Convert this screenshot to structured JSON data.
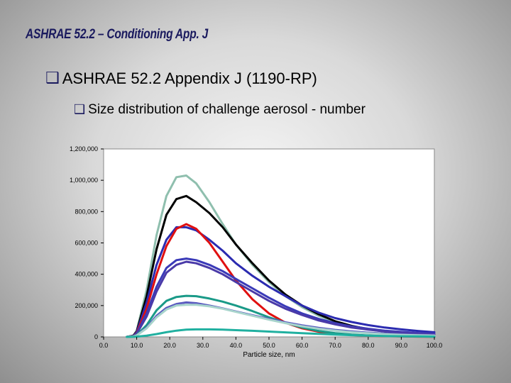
{
  "slide": {
    "title": "ASHRAE 52.2 – Conditioning App. J",
    "bullet1": "ASHRAE 52.2 Appendix J (1190-RP)",
    "bullet2": "Size distribution of challenge aerosol - number",
    "bullet_icon": "q-checkbox-bullet-icon"
  },
  "chart_data": {
    "type": "line",
    "title": "",
    "xlabel": "Particle size, nm",
    "ylabel": "",
    "xlim": [
      0,
      100
    ],
    "ylim": [
      0,
      1200000
    ],
    "x_tick_labels": [
      "0.0",
      "10.0",
      "20.0",
      "30.0",
      "40.0",
      "50.0",
      "60.0",
      "70.0",
      "80.0",
      "90.0",
      "100.0"
    ],
    "y_tick_labels": [
      "0",
      "200,000",
      "400,000",
      "600,000",
      "800,000",
      "1,000,000",
      "1,200,000"
    ],
    "grid": false,
    "legend": "none",
    "x": [
      7,
      9,
      10,
      13,
      16,
      19,
      22,
      25,
      28,
      32,
      36,
      40,
      45,
      50,
      55,
      60,
      65,
      70,
      75,
      80,
      85,
      90,
      95,
      100
    ],
    "series": [
      {
        "color": "#8fbfae",
        "values": [
          0,
          8000,
          40000,
          300000,
          650000,
          900000,
          1020000,
          1030000,
          980000,
          860000,
          720000,
          590000,
          460000,
          350000,
          260000,
          190000,
          135000,
          95000,
          68000,
          48000,
          34000,
          25000,
          18000,
          13000
        ]
      },
      {
        "color": "#000000",
        "values": [
          0,
          8000,
          35000,
          260000,
          560000,
          780000,
          880000,
          900000,
          860000,
          790000,
          700000,
          590000,
          470000,
          360000,
          270000,
          200000,
          145000,
          100000,
          70000,
          50000,
          35000,
          26000,
          19000,
          14000
        ]
      },
      {
        "color": "#2b2bb0",
        "values": [
          0,
          6000,
          30000,
          220000,
          460000,
          620000,
          700000,
          700000,
          680000,
          620000,
          550000,
          470000,
          390000,
          320000,
          260000,
          200000,
          155000,
          120000,
          95000,
          75000,
          60000,
          48000,
          38000,
          30000
        ]
      },
      {
        "color": "#e01010",
        "values": [
          0,
          5000,
          25000,
          180000,
          400000,
          580000,
          690000,
          720000,
          690000,
          600000,
          480000,
          360000,
          240000,
          150000,
          90000,
          55000,
          33000,
          20000,
          12000,
          8000,
          5000,
          3000,
          2000,
          1000
        ]
      },
      {
        "color": "#3a3ab8",
        "values": [
          0,
          5000,
          22000,
          150000,
          320000,
          440000,
          490000,
          500000,
          490000,
          460000,
          420000,
          370000,
          310000,
          250000,
          195000,
          150000,
          115000,
          88000,
          67000,
          52000,
          40000,
          32000,
          25000,
          20000
        ]
      },
      {
        "color": "#4a3aa8",
        "values": [
          0,
          4000,
          20000,
          130000,
          290000,
          410000,
          460000,
          480000,
          470000,
          440000,
          400000,
          350000,
          290000,
          230000,
          180000,
          140000,
          105000,
          80000,
          60000,
          46000,
          35000,
          27000,
          21000,
          16000
        ]
      },
      {
        "color": "#1a9a88",
        "values": [
          0,
          3000,
          12000,
          75000,
          170000,
          230000,
          255000,
          262000,
          260000,
          245000,
          225000,
          200000,
          165000,
          125000,
          90000,
          60000,
          38000,
          24000,
          15000,
          9000,
          6000,
          4000,
          2500,
          1500
        ]
      },
      {
        "color": "#5b5bc0",
        "values": [
          0,
          2500,
          10000,
          60000,
          135000,
          185000,
          210000,
          220000,
          215000,
          200000,
          182000,
          162000,
          138000,
          115000,
          93000,
          74000,
          58000,
          45000,
          35000,
          27000,
          21000,
          16000,
          13000,
          10000
        ]
      },
      {
        "color": "#a8d4cc",
        "values": [
          0,
          2500,
          9000,
          55000,
          125000,
          175000,
          200000,
          205000,
          205000,
          195000,
          180000,
          160000,
          135000,
          110000,
          88000,
          68000,
          52000,
          40000,
          30000,
          23000,
          17000,
          13000,
          10000,
          8000
        ]
      },
      {
        "color": "#20b0a0",
        "values": [
          0,
          500,
          2000,
          8000,
          18000,
          30000,
          40000,
          46000,
          48000,
          48000,
          46000,
          43000,
          39000,
          34000,
          29000,
          24000,
          19000,
          15000,
          11000,
          8000,
          6000,
          4000,
          3000,
          2000
        ]
      }
    ]
  }
}
